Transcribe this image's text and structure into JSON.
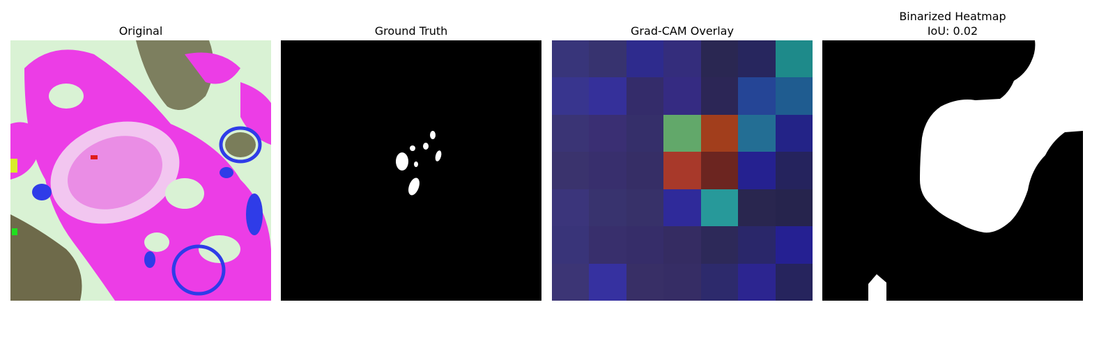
{
  "panels": [
    {
      "title": "Original"
    },
    {
      "title": "Ground Truth"
    },
    {
      "title": "Grad-CAM Overlay"
    },
    {
      "title_lines": [
        "Binarized Heatmap",
        "IoU: 0.02"
      ]
    }
  ],
  "gradcam_grid": [
    [
      "#38357a",
      "#37336f",
      "#2e2b8d",
      "#342d7c",
      "#2a2752",
      "#27265e",
      "#1e8a8a"
    ],
    [
      "#38358e",
      "#35309a",
      "#342c6a",
      "#352b82",
      "#2c2656",
      "#254596",
      "#1f5c90"
    ],
    [
      "#3a3475",
      "#3a2f73",
      "#352f6a",
      "#62a86a",
      "#a23e1c",
      "#236e94",
      "#232387"
    ],
    [
      "#3a336d",
      "#382f6d",
      "#362e66",
      "#a8392a",
      "#6c2520",
      "#252190",
      "#25235d"
    ],
    [
      "#3b357b",
      "#38336e",
      "#373169",
      "#2f2a9a",
      "#27999a",
      "#29264f",
      "#26244d"
    ],
    [
      "#393479",
      "#382f6c",
      "#362d69",
      "#352c62",
      "#2d2959",
      "#2a276a",
      "#252092"
    ],
    [
      "#3c3575",
      "#3631a0",
      "#382f66",
      "#362d65",
      "#2d2a6c",
      "#2c2590",
      "#26245d"
    ]
  ]
}
